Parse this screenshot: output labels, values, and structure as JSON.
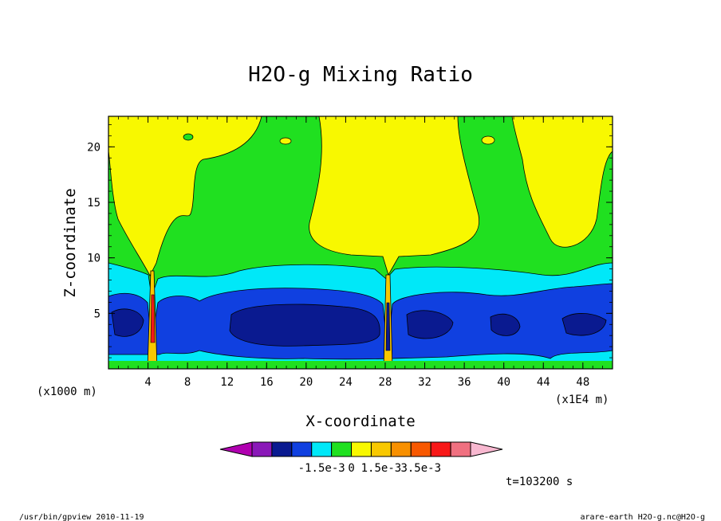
{
  "chart_data": {
    "type": "heatmap",
    "title": "H2O-g Mixing Ratio",
    "xlabel": "X-coordinate",
    "ylabel": "Z-coordinate",
    "x_unit_left": "(x1000 m)",
    "x_unit_right": "(x1E4 m)",
    "xlim": [
      0,
      51
    ],
    "ylim": [
      0,
      22.75
    ],
    "x_ticks": [
      4,
      8,
      12,
      16,
      20,
      24,
      28,
      32,
      36,
      40,
      44,
      48
    ],
    "x_tick_labels": [
      "4",
      "8",
      "12",
      "16",
      "20",
      "24",
      "28",
      "32",
      "36",
      "40",
      "44",
      "48"
    ],
    "y_ticks": [
      5,
      10,
      15,
      20
    ],
    "y_tick_labels": [
      "5",
      "10",
      "15",
      "20"
    ],
    "colorbar": {
      "colors": [
        "#b000b0",
        "#8a18b8",
        "#0a1a90",
        "#1040e0",
        "#00e8f8",
        "#20e020",
        "#f8f800",
        "#f8c800",
        "#f89000",
        "#f85800",
        "#f81818",
        "#f07080",
        "#f8b8d0"
      ],
      "labels": [
        "-1.5e-3",
        "0",
        "1.5e-3",
        "3.5e-3"
      ],
      "label_positions": [
        3.5,
        5.0,
        6.5,
        8.5
      ]
    },
    "time_label": "t=103200 s"
  },
  "footer": {
    "left": "/usr/bin/gpview   2010-11-19",
    "right": "arare-earth_H2O-g.nc@H2O-g"
  }
}
